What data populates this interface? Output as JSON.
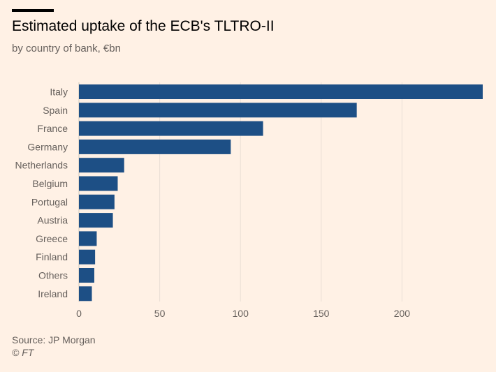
{
  "header": {
    "title": "Estimated uptake of the ECB's TLTRO-II",
    "subtitle": "by country of bank, €bn"
  },
  "footer": {
    "source": "Source: JP Morgan",
    "credit": "© FT"
  },
  "colors": {
    "background": "#FFF1E5",
    "bar": "#1D4F85",
    "grid": "#E9DED5",
    "text": "#66605C"
  },
  "chart_data": {
    "type": "bar",
    "orientation": "horizontal",
    "title": "Estimated uptake of the ECB's TLTRO-II",
    "subtitle": "by country of bank, €bn",
    "categories": [
      "Italy",
      "Spain",
      "France",
      "Germany",
      "Netherlands",
      "Belgium",
      "Portugal",
      "Austria",
      "Greece",
      "Finland",
      "Others",
      "Ireland"
    ],
    "values": [
      250,
      172,
      114,
      94,
      28,
      24,
      22,
      21,
      11,
      10,
      9.5,
      8
    ],
    "xlim": [
      0,
      250
    ],
    "xticks": [
      0,
      50,
      100,
      150,
      200
    ],
    "grid": true,
    "legend": false
  }
}
